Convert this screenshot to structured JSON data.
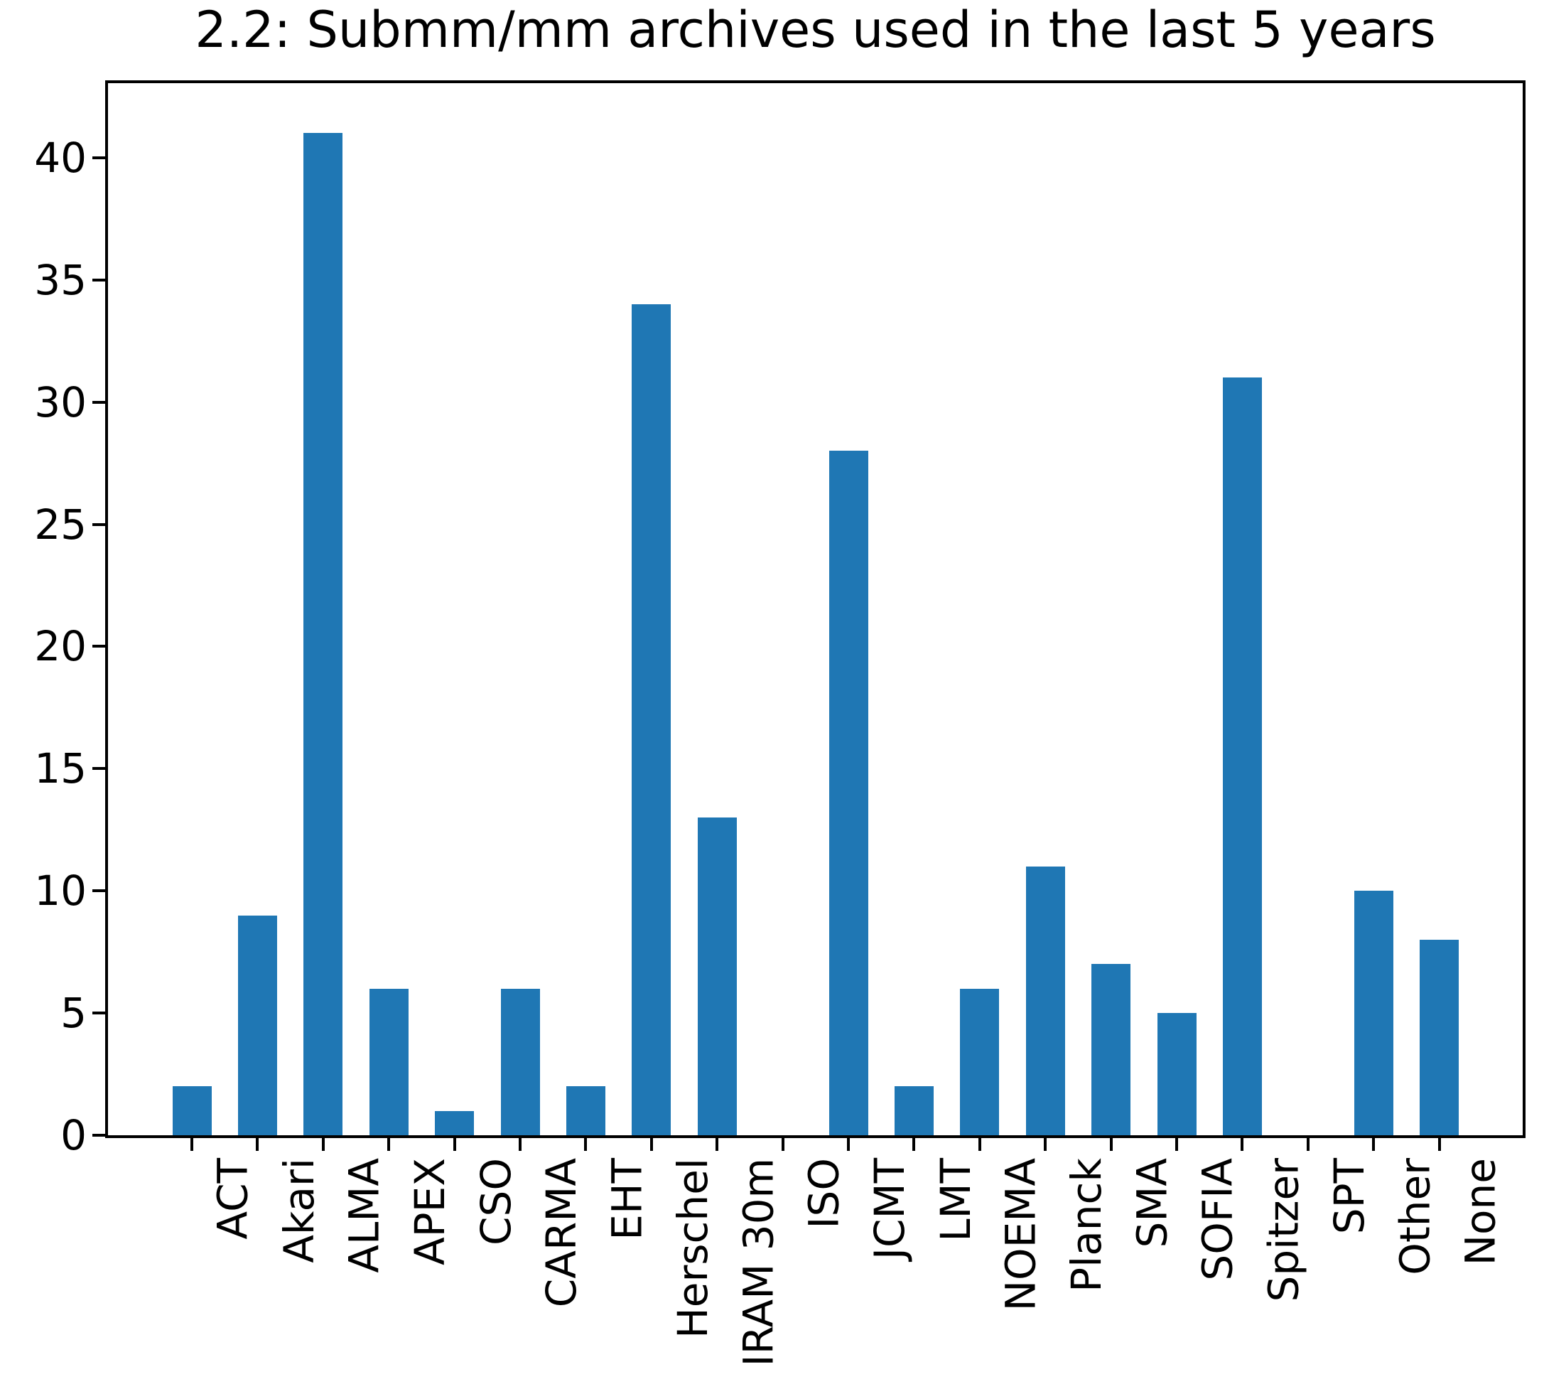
{
  "figure": {
    "background_color": "#ffffff",
    "text_color": "#000000"
  },
  "chart_data": {
    "type": "bar",
    "title": "2.2: Submm/mm archives used in the last 5 years",
    "categories": [
      "ACT",
      "Akari",
      "ALMA",
      "APEX",
      "CSO",
      "CARMA",
      "EHT",
      "Herschel",
      "IRAM 30m",
      "ISO",
      "JCMT",
      "LMT",
      "NOEMA",
      "Planck",
      "SMA",
      "SOFIA",
      "Spitzer",
      "SPT",
      "Other",
      "None"
    ],
    "values": [
      2,
      9,
      41,
      6,
      1,
      6,
      2,
      34,
      13,
      0,
      28,
      2,
      6,
      11,
      7,
      5,
      31,
      0,
      10,
      8
    ],
    "xlabel": "",
    "ylabel": "",
    "ylim": [
      0,
      43.05
    ],
    "yticks": [
      0,
      5,
      10,
      15,
      20,
      25,
      30,
      35,
      40
    ],
    "x_tick_rotation_deg": 90,
    "grid": false,
    "legend": "none",
    "bar_color": "#1f77b4",
    "axis_color": "#000000"
  }
}
